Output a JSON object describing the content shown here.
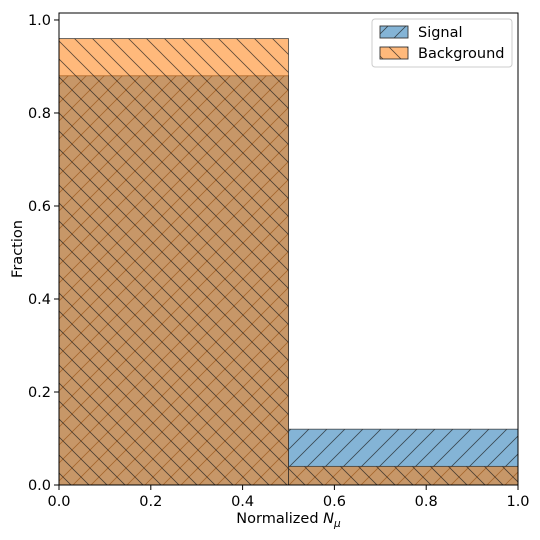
{
  "chart_data": {
    "type": "histogram",
    "xlabel": "Normalized",
    "xlabel_symbol": "N",
    "xlabel_subscript": "μ",
    "ylabel": "Fraction",
    "xlim": [
      0,
      1.0
    ],
    "ylim": [
      0,
      1.0
    ],
    "xticks": [
      0.0,
      0.2,
      0.4,
      0.6,
      0.8,
      1.0
    ],
    "xtick_labels": [
      "0.0",
      "0.2",
      "0.4",
      "0.6",
      "0.8",
      "1.0"
    ],
    "yticks": [
      0.0,
      0.2,
      0.4,
      0.6,
      0.8,
      1.0
    ],
    "ytick_labels": [
      "0.0",
      "0.2",
      "0.4",
      "0.6",
      "0.8",
      "1.0"
    ],
    "bin_edges": [
      0,
      0.5,
      1.0
    ],
    "grid": false,
    "legend_position": "top-right",
    "series": [
      {
        "name": "Signal",
        "values": [
          0.88,
          0.12
        ],
        "color": "#1f77b4",
        "hatch": "/"
      },
      {
        "name": "Background",
        "values": [
          0.96,
          0.04
        ],
        "color": "#ff7f0e",
        "hatch": "\\"
      }
    ]
  }
}
